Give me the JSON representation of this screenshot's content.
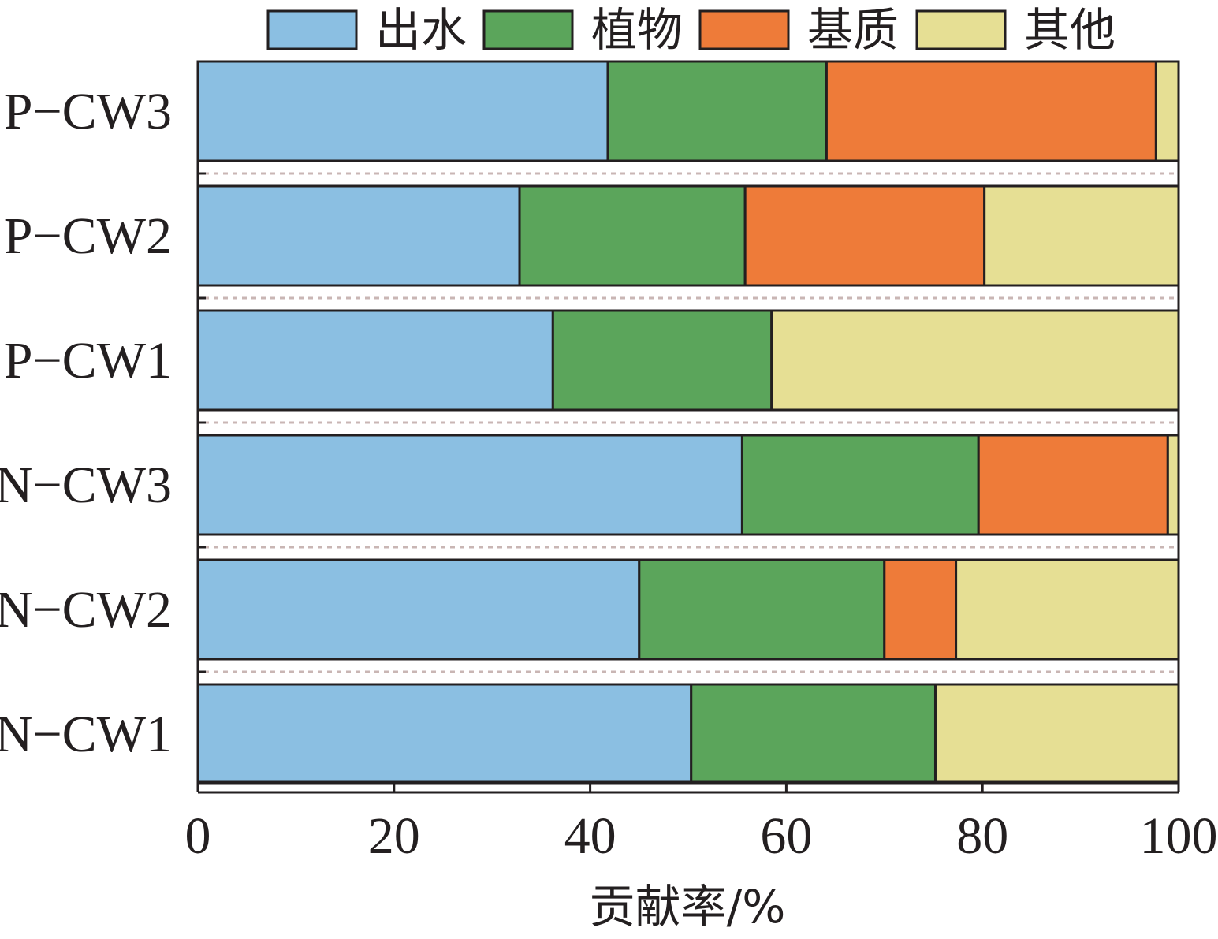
{
  "chart_data": {
    "type": "bar",
    "orientation": "horizontal",
    "stacked": true,
    "categories": [
      "P−CW3",
      "P−CW2",
      "P−CW1",
      "N−CW3",
      "N−CW2",
      "N−CW1"
    ],
    "series": [
      {
        "name": "出水",
        "color": "#8bbfe2",
        "values": [
          41.8,
          32.8,
          36.2,
          55.5,
          45.0,
          50.3
        ]
      },
      {
        "name": "植物",
        "color": "#5ba55b",
        "values": [
          22.3,
          23.0,
          22.3,
          24.1,
          25.0,
          24.9
        ]
      },
      {
        "name": "基质",
        "color": "#ee7b39",
        "values": [
          33.6,
          24.4,
          0,
          19.3,
          7.3,
          0
        ]
      },
      {
        "name": "其他",
        "color": "#e6df94",
        "values": [
          2.3,
          19.8,
          41.5,
          1.1,
          22.7,
          24.8
        ]
      }
    ],
    "xlabel": "贡献率/%",
    "ylabel": "",
    "xlim": [
      0,
      100
    ],
    "xticks": [
      "0",
      "20",
      "40",
      "60",
      "80",
      "100"
    ],
    "legend_position": "top",
    "grid": false
  }
}
